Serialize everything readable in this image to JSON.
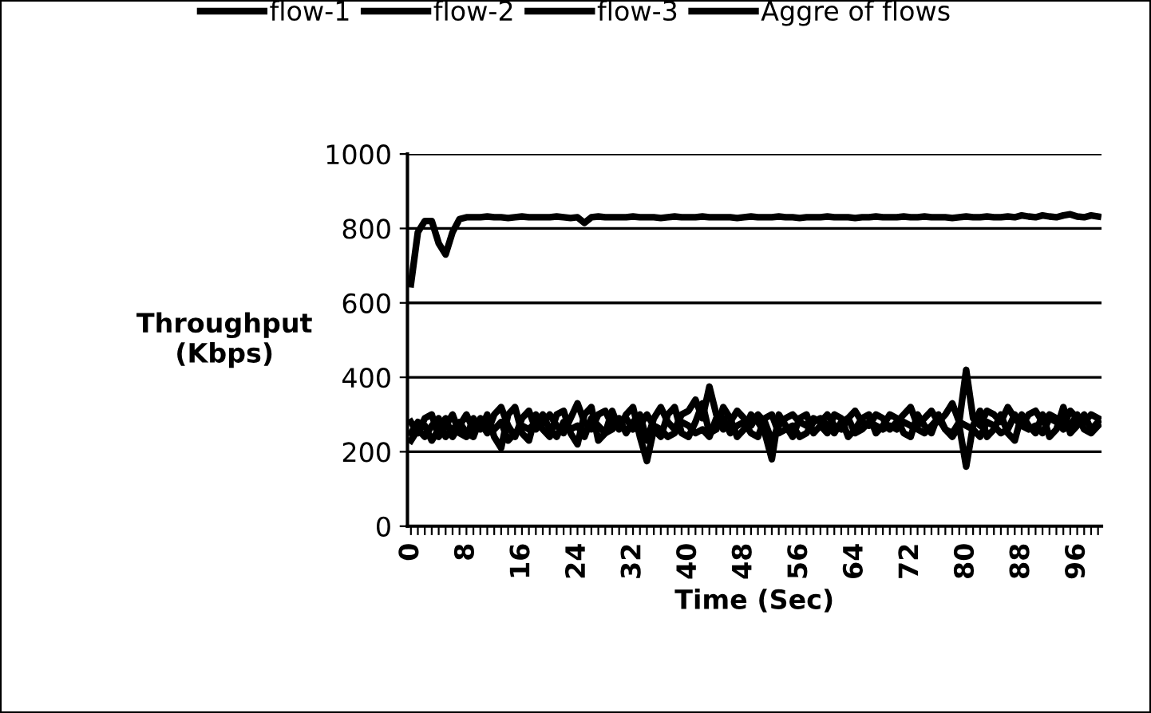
{
  "chart_data": {
    "type": "line",
    "xlabel": "Time (Sec)",
    "ylabel": "Throughput\n(Kbps)",
    "categories": [
      "0",
      null,
      null,
      null,
      null,
      null,
      null,
      null,
      "8",
      null,
      null,
      null,
      null,
      null,
      null,
      null,
      "16",
      null,
      null,
      null,
      null,
      null,
      null,
      null,
      "24",
      null,
      null,
      null,
      null,
      null,
      null,
      null,
      "32",
      null,
      null,
      null,
      null,
      null,
      null,
      null,
      "40",
      null,
      null,
      null,
      null,
      null,
      null,
      null,
      "48",
      null,
      null,
      null,
      null,
      null,
      null,
      null,
      "56",
      null,
      null,
      null,
      null,
      null,
      null,
      null,
      "64",
      null,
      null,
      null,
      null,
      null,
      null,
      null,
      "72",
      null,
      null,
      null,
      null,
      null,
      null,
      null,
      "80",
      null,
      null,
      null,
      null,
      null,
      null,
      null,
      "88",
      null,
      null,
      null,
      null,
      null,
      null,
      null,
      "96",
      null,
      null,
      null
    ],
    "ylim": [
      0,
      1000
    ],
    "yticks": [
      0,
      200,
      400,
      600,
      800,
      1000
    ],
    "grid": "y",
    "legend": "top",
    "marker": "none",
    "line_style": "solid",
    "series": [
      {
        "name": "flow-1",
        "color": "#000000",
        "values": [
          250,
          280,
          270,
          230,
          260,
          290,
          240,
          270,
          300,
          260,
          280,
          250,
          300,
          320,
          270,
          240,
          290,
          310,
          260,
          280,
          300,
          270,
          250,
          290,
          330,
          280,
          260,
          300,
          310,
          270,
          290,
          250,
          280,
          300,
          230,
          290,
          320,
          280,
          260,
          300,
          310,
          340,
          290,
          375,
          300,
          260,
          280,
          310,
          290,
          270,
          300,
          280,
          230,
          270,
          290,
          300,
          280,
          270,
          290,
          280,
          300,
          270,
          260,
          290,
          310,
          280,
          270,
          300,
          290,
          260,
          280,
          300,
          320,
          270,
          290,
          310,
          280,
          300,
          330,
          280,
          420,
          290,
          270,
          310,
          300,
          280,
          320,
          290,
          270,
          300,
          310,
          280,
          300,
          290,
          270,
          310,
          290,
          280,
          300,
          290
        ]
      },
      {
        "name": "flow-2",
        "color": "#000000",
        "values": [
          280,
          250,
          290,
          300,
          240,
          270,
          300,
          250,
          240,
          290,
          260,
          300,
          240,
          210,
          300,
          320,
          250,
          230,
          300,
          260,
          240,
          300,
          310,
          250,
          220,
          300,
          320,
          230,
          250,
          310,
          260,
          300,
          320,
          240,
          175,
          260,
          240,
          300,
          320,
          250,
          240,
          280,
          330,
          250,
          260,
          320,
          290,
          240,
          260,
          300,
          280,
          250,
          180,
          300,
          270,
          240,
          290,
          300,
          250,
          270,
          250,
          300,
          290,
          240,
          260,
          290,
          300,
          250,
          270,
          300,
          290,
          250,
          240,
          300,
          270,
          250,
          300,
          260,
          240,
          270,
          160,
          270,
          310,
          240,
          260,
          300,
          250,
          230,
          300,
          270,
          250,
          300,
          240,
          260,
          320,
          250,
          270,
          300,
          260,
          280
        ]
      },
      {
        "name": "flow-3",
        "color": "#000000",
        "values": [
          230,
          260,
          240,
          270,
          290,
          240,
          260,
          280,
          250,
          240,
          290,
          270,
          260,
          280,
          230,
          250,
          270,
          260,
          280,
          300,
          260,
          240,
          280,
          260,
          270,
          240,
          290,
          270,
          250,
          260,
          280,
          290,
          260,
          270,
          300,
          270,
          260,
          240,
          250,
          280,
          270,
          250,
          260,
          240,
          290,
          290,
          250,
          270,
          280,
          250,
          240,
          290,
          300,
          250,
          260,
          270,
          240,
          250,
          280,
          290,
          270,
          250,
          280,
          290,
          250,
          260,
          280,
          270,
          260,
          270,
          260,
          280,
          270,
          260,
          250,
          270,
          290,
          260,
          250,
          280,
          270,
          260,
          240,
          280,
          270,
          250,
          260,
          300,
          270,
          260,
          270,
          250,
          290,
          280,
          260,
          270,
          300,
          260,
          250,
          270
        ]
      },
      {
        "name": "Aggre of flows",
        "color": "#000000",
        "values": [
          650,
          790,
          820,
          820,
          760,
          730,
          790,
          825,
          830,
          830,
          830,
          832,
          830,
          830,
          828,
          830,
          832,
          830,
          830,
          830,
          830,
          832,
          830,
          828,
          830,
          815,
          830,
          832,
          830,
          830,
          830,
          830,
          832,
          830,
          830,
          830,
          828,
          830,
          832,
          830,
          830,
          830,
          832,
          830,
          830,
          830,
          830,
          828,
          830,
          832,
          830,
          830,
          830,
          832,
          830,
          830,
          828,
          830,
          830,
          830,
          832,
          830,
          830,
          830,
          828,
          830,
          830,
          832,
          830,
          830,
          830,
          832,
          830,
          830,
          832,
          830,
          830,
          830,
          828,
          830,
          832,
          830,
          830,
          832,
          830,
          830,
          832,
          830,
          835,
          832,
          830,
          835,
          832,
          830,
          835,
          838,
          832,
          830,
          835,
          832
        ]
      }
    ]
  }
}
